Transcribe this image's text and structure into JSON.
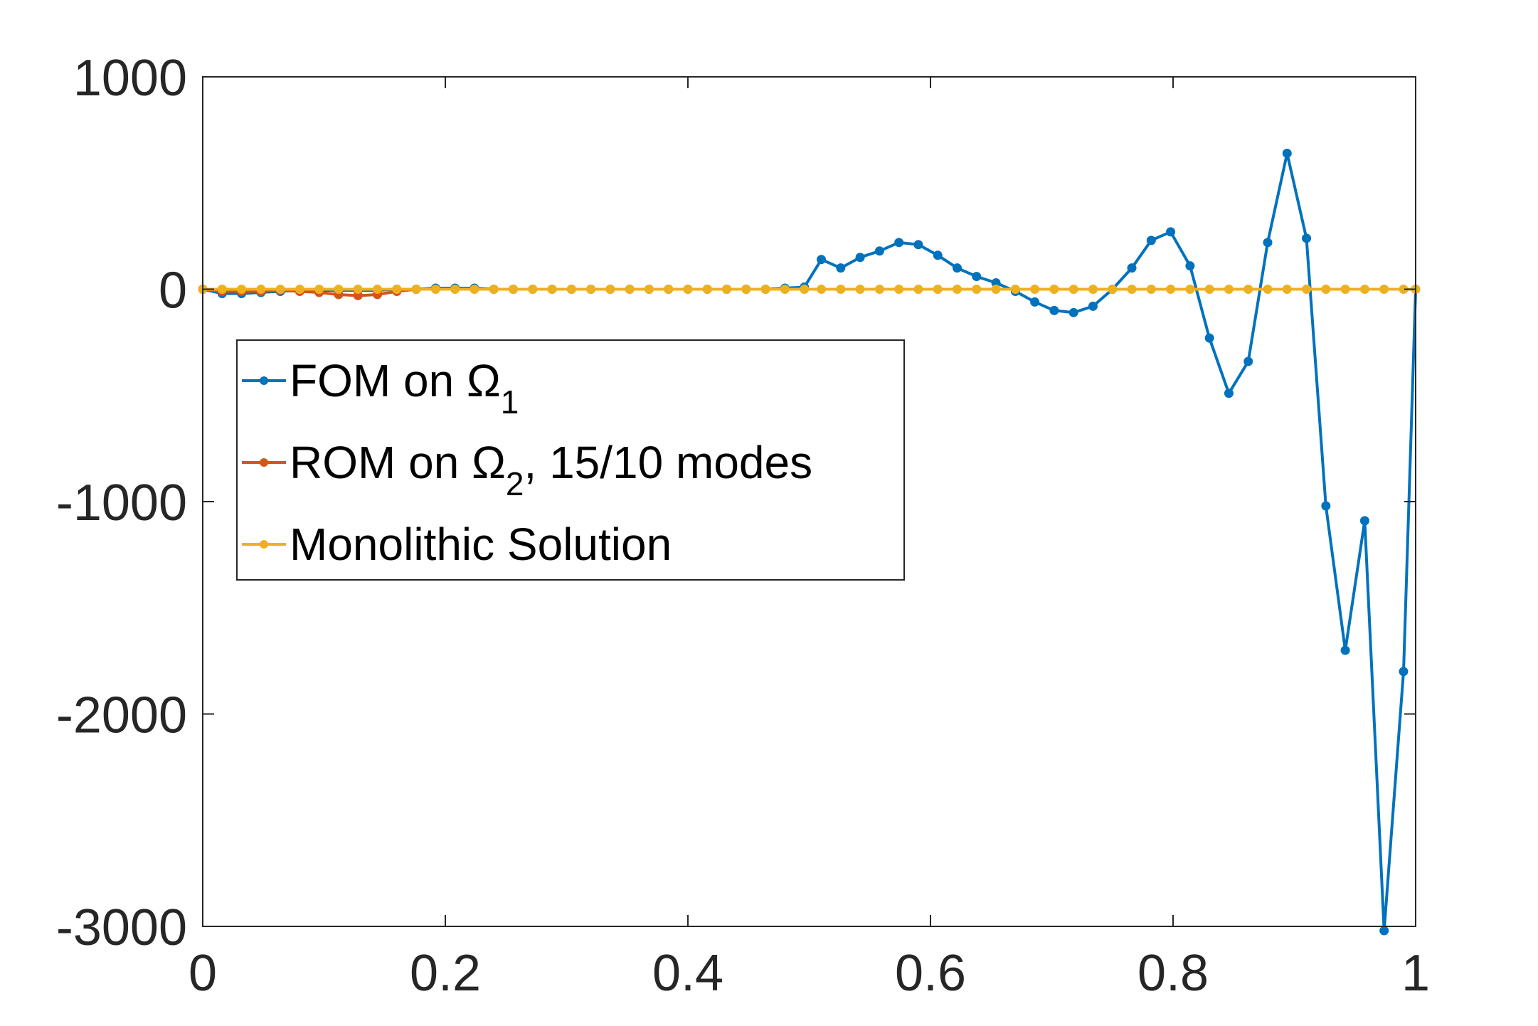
{
  "chart_data": {
    "type": "line",
    "title": "",
    "xlabel": "",
    "ylabel": "",
    "xlim": [
      0,
      1
    ],
    "ylim": [
      -3000,
      1000
    ],
    "xticks": [
      0,
      0.2,
      0.4,
      0.6,
      0.8,
      1
    ],
    "xtick_labels": [
      "0",
      "0.2",
      "0.4",
      "0.6",
      "0.8",
      "1"
    ],
    "yticks": [
      1000,
      0,
      -1000,
      -2000,
      -3000
    ],
    "ytick_labels": [
      "1000",
      "0",
      "-1000",
      "-2000",
      "-3000"
    ],
    "grid": false,
    "legend_position": "left",
    "series": [
      {
        "name": "FOM on Ω",
        "name_main": "FOM on Ω",
        "name_sub": "1",
        "name_tail": "",
        "color": "#0072BD",
        "x": [
          0,
          0.016,
          0.032,
          0.048,
          0.064,
          0.08,
          0.096,
          0.112,
          0.128,
          0.144,
          0.16,
          0.176,
          0.192,
          0.208,
          0.224,
          0.24,
          0.256,
          0.272,
          0.288,
          0.304,
          0.32,
          0.336,
          0.352,
          0.368,
          0.384,
          0.4,
          0.416,
          0.432,
          0.448,
          0.464,
          0.48,
          0.496,
          0.51,
          0.526,
          0.542,
          0.558,
          0.574,
          0.59,
          0.606,
          0.622,
          0.638,
          0.654,
          0.67,
          0.686,
          0.702,
          0.718,
          0.734,
          0.75,
          0.766,
          0.782,
          0.798,
          0.814,
          0.83,
          0.846,
          0.862,
          0.878,
          0.894,
          0.91,
          0.926,
          0.942,
          0.958,
          0.974,
          0.99,
          1.0
        ],
        "y": [
          0,
          -20,
          -20,
          -15,
          -10,
          -5,
          -5,
          -5,
          -5,
          -5,
          0,
          0,
          5,
          5,
          5,
          0,
          0,
          0,
          0,
          0,
          0,
          0,
          0,
          0,
          0,
          0,
          0,
          0,
          0,
          0,
          5,
          10,
          140,
          100,
          150,
          180,
          220,
          210,
          160,
          100,
          60,
          30,
          -10,
          -60,
          -100,
          -110,
          -80,
          0,
          100,
          230,
          270,
          110,
          -230,
          -490,
          -340,
          220,
          640,
          240,
          -1020,
          -1700,
          -1090,
          -3020,
          -1800,
          0
        ]
      },
      {
        "name": "ROM on Ω, 15/10 modes",
        "name_main": "ROM on Ω",
        "name_sub": "2",
        "name_tail": ", 15/10 modes",
        "color": "#D95319",
        "x": [
          0,
          0.016,
          0.032,
          0.048,
          0.064,
          0.08,
          0.096,
          0.112,
          0.128,
          0.144,
          0.16,
          0.176
        ],
        "y": [
          0,
          -10,
          -10,
          -10,
          -5,
          -10,
          -15,
          -25,
          -30,
          -25,
          -10,
          0
        ]
      },
      {
        "name": "Monolithic Solution",
        "name_main": "Monolithic Solution",
        "name_sub": "",
        "name_tail": "",
        "color": "#EDB120",
        "x": [
          0,
          0.016,
          0.032,
          0.048,
          0.064,
          0.08,
          0.096,
          0.112,
          0.128,
          0.144,
          0.16,
          0.176,
          0.192,
          0.208,
          0.224,
          0.24,
          0.256,
          0.272,
          0.288,
          0.304,
          0.32,
          0.336,
          0.352,
          0.368,
          0.384,
          0.4,
          0.416,
          0.432,
          0.448,
          0.464,
          0.48,
          0.496,
          0.51,
          0.526,
          0.542,
          0.558,
          0.574,
          0.59,
          0.606,
          0.622,
          0.638,
          0.654,
          0.67,
          0.686,
          0.702,
          0.718,
          0.734,
          0.75,
          0.766,
          0.782,
          0.798,
          0.814,
          0.83,
          0.846,
          0.862,
          0.878,
          0.894,
          0.91,
          0.926,
          0.942,
          0.958,
          0.974,
          0.99,
          1.0
        ],
        "y": [
          0,
          0,
          0,
          0,
          0,
          0,
          0,
          0,
          0,
          0,
          0,
          0,
          0,
          0,
          0,
          0,
          0,
          0,
          0,
          0,
          0,
          0,
          0,
          0,
          0,
          0,
          0,
          0,
          0,
          0,
          0,
          0,
          0,
          0,
          0,
          0,
          0,
          0,
          0,
          0,
          0,
          0,
          0,
          0,
          0,
          0,
          0,
          0,
          0,
          0,
          0,
          0,
          0,
          0,
          0,
          0,
          0,
          0,
          0,
          0,
          0,
          0,
          0,
          0
        ]
      }
    ]
  }
}
